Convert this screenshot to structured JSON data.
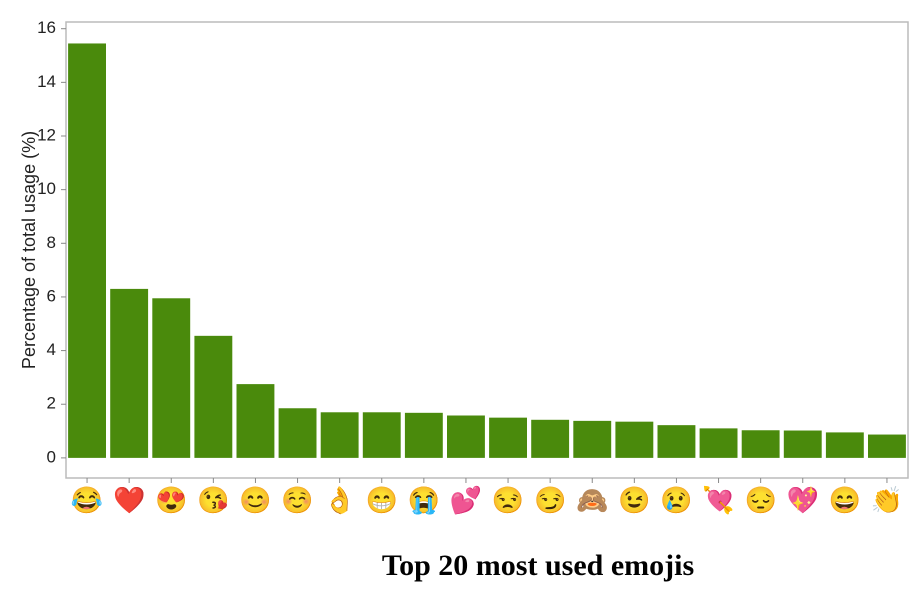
{
  "chart_data": {
    "type": "bar",
    "title": "Top 20 most used emojis",
    "y_label": "Percentage of total usage (%)",
    "categories": [
      "😂",
      "❤️",
      "😍",
      "😘",
      "😊",
      "☺️",
      "👌",
      "😁",
      "😭",
      "💕",
      "😒",
      "😏",
      "🙈",
      "😉",
      "😢",
      "💘",
      "😔",
      "💖",
      "😄",
      "👏"
    ],
    "values": [
      15.45,
      6.3,
      5.95,
      4.55,
      2.75,
      1.85,
      1.7,
      1.7,
      1.68,
      1.58,
      1.5,
      1.42,
      1.38,
      1.35,
      1.22,
      1.1,
      1.03,
      1.02,
      0.95,
      0.87
    ],
    "color": "#4a8a0c",
    "ylim": [
      -0.75,
      16.25
    ],
    "yticks": [
      0,
      2,
      4,
      6,
      8,
      10,
      12,
      14,
      16
    ],
    "grid": false
  }
}
